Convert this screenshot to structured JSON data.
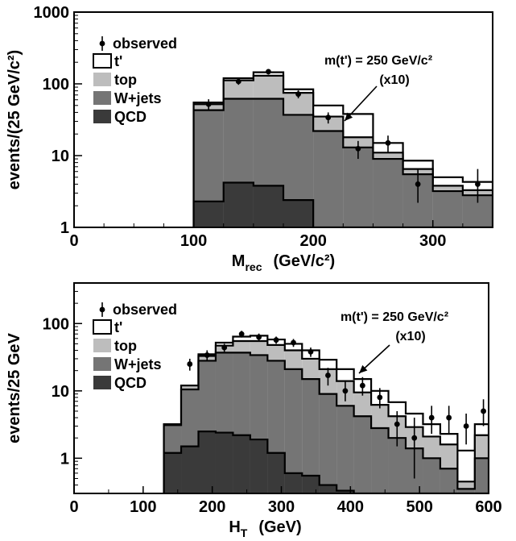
{
  "chart_data": [
    {
      "type": "histogram",
      "yscale": "log",
      "xlim": [
        0,
        350
      ],
      "ylim": [
        1,
        1000
      ],
      "bin_edges": [
        100,
        125,
        150,
        175,
        200,
        225,
        250,
        275,
        300,
        325,
        350
      ],
      "xlabel": "M",
      "xlabel_sub": "rec",
      "xlabel_unit": "(GeV/c²)",
      "ylabel": "events/(25 GeV/c²)",
      "x_ticks": [
        "0",
        "100",
        "200",
        "300"
      ],
      "y_ticks": [
        "1",
        "10",
        "100",
        "1000"
      ],
      "legend": [
        "observed",
        "t'",
        "top",
        "W+jets",
        "QCD"
      ],
      "annotation": "m(t') = 250 GeV/c²",
      "annotation2": "(x10)",
      "colors": {
        "tprime": "#ffffff",
        "top": "#bdbdbd",
        "wjets": "#757575",
        "qcd": "#3a3a3a"
      },
      "series": [
        {
          "name": "QCD",
          "values": [
            2.3,
            4.2,
            3.8,
            2.4,
            1.0,
            1.0,
            1.0,
            1.0,
            1.0,
            1.0
          ]
        },
        {
          "name": "W+jets",
          "values": [
            43,
            62,
            62,
            37,
            22,
            13,
            9,
            5.5,
            3.2,
            2.8
          ]
        },
        {
          "name": "top",
          "values": [
            52,
            112,
            130,
            75,
            35,
            18,
            11,
            6.5,
            3.8,
            3.3
          ]
        },
        {
          "name": "t'",
          "values": [
            55,
            120,
            145,
            84,
            50,
            38,
            15,
            8.5,
            5.0,
            4.3
          ]
        }
      ],
      "observed": {
        "x": [
          112.5,
          137.5,
          162.5,
          187.5,
          212.5,
          237.5,
          262.5,
          287.5,
          312.5,
          337.5
        ],
        "y": [
          52,
          108,
          148,
          72,
          34,
          12.5,
          15,
          4,
          null,
          4
        ],
        "err_lo": [
          43,
          97,
          135,
          63,
          28,
          9,
          11,
          2.2,
          null,
          2.2
        ],
        "err_hi": [
          61,
          118,
          160,
          81,
          40,
          16,
          19,
          6.5,
          null,
          6.5
        ]
      }
    },
    {
      "type": "histogram",
      "yscale": "log",
      "xlim": [
        0,
        600
      ],
      "ylim": [
        0.3,
        400
      ],
      "bin_edges": [
        130,
        155,
        180,
        205,
        230,
        255,
        280,
        305,
        330,
        355,
        380,
        405,
        430,
        455,
        480,
        505,
        530,
        555,
        580,
        600
      ],
      "xlabel": "H",
      "xlabel_sub": "T",
      "xlabel_unit": "(GeV)",
      "ylabel": "events/25 GeV",
      "x_ticks": [
        "0",
        "100",
        "200",
        "300",
        "400",
        "500",
        "600"
      ],
      "y_ticks": [
        "1",
        "10",
        "100"
      ],
      "legend": [
        "observed",
        "t'",
        "top",
        "W+jets",
        "QCD"
      ],
      "annotation": "m(t') = 250 GeV/c²",
      "annotation2": "(x10)",
      "colors": {
        "tprime": "#ffffff",
        "top": "#bdbdbd",
        "wjets": "#757575",
        "qcd": "#3a3a3a"
      },
      "series": [
        {
          "name": "QCD",
          "values": [
            1.2,
            1.5,
            2.5,
            2.4,
            2.2,
            1.9,
            1.2,
            0.6,
            0.55,
            0.4,
            0.33,
            0.3,
            0.3,
            0.3,
            0.3,
            0.3,
            0.3,
            0.3,
            0.3
          ]
        },
        {
          "name": "W+jets",
          "values": [
            3.1,
            10.5,
            28,
            37,
            37,
            34,
            28,
            21,
            15,
            9,
            6,
            4.2,
            2.8,
            2.0,
            1.4,
            1.0,
            0.7,
            0.35,
            1.0
          ]
        },
        {
          "name": "top",
          "values": [
            3.2,
            12,
            33,
            47,
            55,
            55,
            48,
            40,
            30,
            21,
            14,
            9.5,
            6.2,
            4.2,
            2.9,
            2.1,
            1.6,
            0.45,
            2.2
          ]
        },
        {
          "name": "t'",
          "values": [
            3.2,
            12,
            35,
            52,
            64,
            66,
            58,
            50,
            40,
            29,
            21,
            15,
            10,
            6.8,
            4.6,
            3.2,
            2.3,
            1.3,
            3.2
          ]
        }
      ],
      "observed": {
        "x": [
          167.5,
          192.5,
          217.5,
          242.5,
          267.5,
          292.5,
          317.5,
          342.5,
          367.5,
          392.5,
          417.5,
          442.5,
          467.5,
          492.5,
          517.5,
          542.5,
          567.5,
          592.5
        ],
        "y": [
          25,
          34,
          44,
          70,
          63,
          57,
          52,
          38,
          17,
          10,
          12,
          8,
          3.2,
          2,
          4,
          4,
          3,
          5
        ],
        "err_lo": [
          20,
          28,
          38,
          62,
          55,
          50,
          45,
          32,
          12,
          7,
          8.5,
          5.5,
          1.5,
          0.5,
          2.3,
          2.3,
          1.6,
          3
        ],
        "err_hi": [
          30,
          40,
          50,
          78,
          71,
          64,
          59,
          44,
          22,
          14,
          16,
          11,
          5,
          4,
          6,
          6,
          4.6,
          7.5
        ]
      }
    }
  ]
}
